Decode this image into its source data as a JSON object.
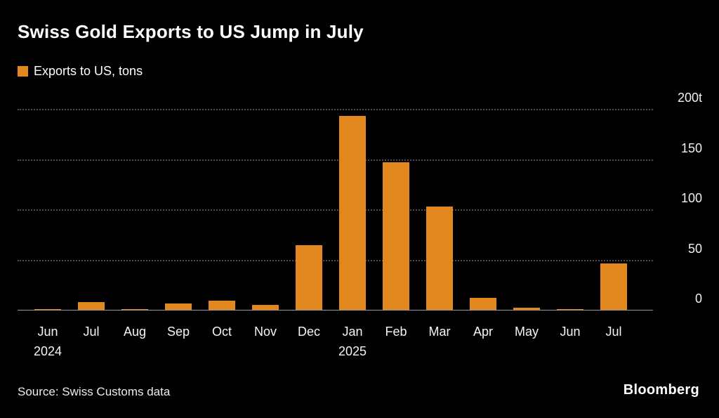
{
  "title": "Swiss Gold Exports to US Jump in July",
  "legend": {
    "label": "Exports to US, tons"
  },
  "source": "Source: Swiss Customs data",
  "brand": "Bloomberg",
  "colors": {
    "background": "#000000",
    "bar": "#E2871D",
    "grid": "#4f4f4f",
    "axis": "#9a9a9a",
    "text": "#ffffff"
  },
  "chart_data": {
    "type": "bar",
    "title": "Swiss Gold Exports to US Jump in July",
    "series_name": "Exports to US, tons",
    "categories": [
      "Jun",
      "Jul",
      "Aug",
      "Sep",
      "Oct",
      "Nov",
      "Dec",
      "Jan",
      "Feb",
      "Mar",
      "Apr",
      "May",
      "Jun",
      "Jul"
    ],
    "values": [
      1,
      8,
      1,
      6,
      9,
      5,
      64,
      193,
      147,
      103,
      12,
      2,
      1,
      46
    ],
    "year_markers": [
      {
        "index": 0,
        "label": "2024"
      },
      {
        "index": 7,
        "label": "2025"
      }
    ],
    "yticks": [
      {
        "value": 0,
        "label": "0"
      },
      {
        "value": 50,
        "label": "50"
      },
      {
        "value": 100,
        "label": "100"
      },
      {
        "value": 150,
        "label": "150"
      },
      {
        "value": 200,
        "label": "200t"
      }
    ],
    "ylim": [
      0,
      200
    ],
    "xlabel": "",
    "ylabel": "tons",
    "grid": "dotted-horizontal",
    "legend_position": "top-left"
  }
}
